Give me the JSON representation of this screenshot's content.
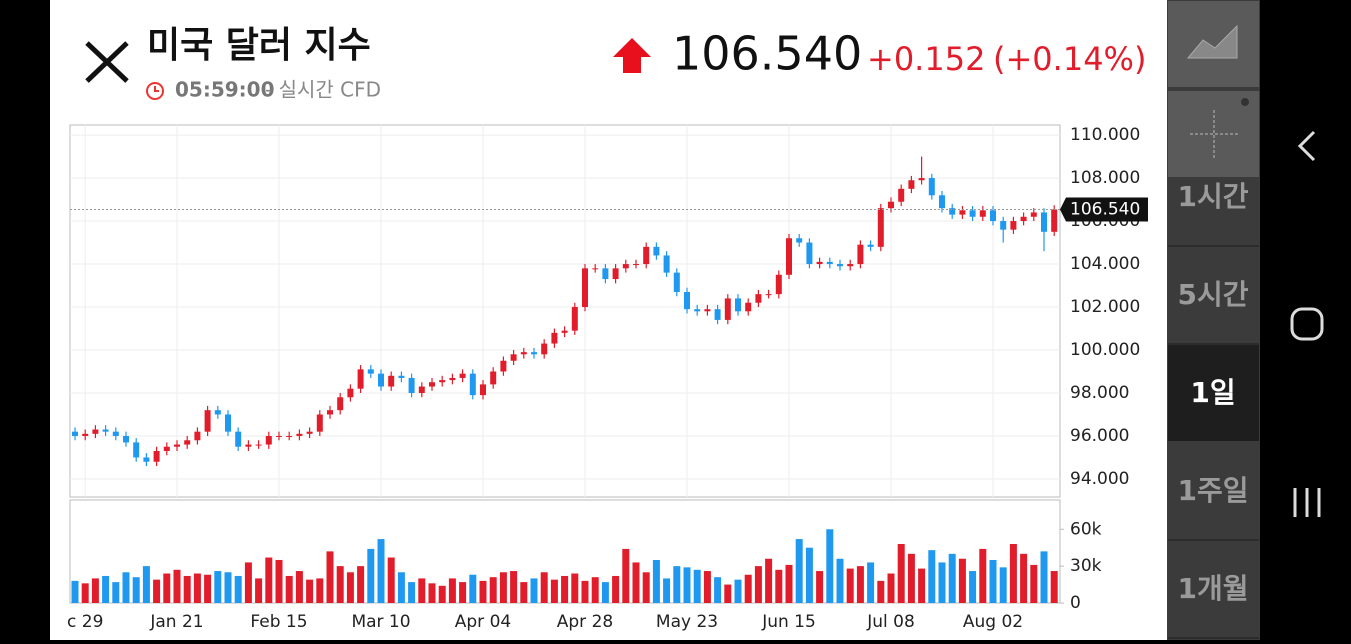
{
  "header": {
    "title": "미국 달러 지수",
    "time": "05:59:00",
    "source": "- 실시간 CFD",
    "price": "106.540",
    "change": "+0.152",
    "change_pct": "(+0.14%)"
  },
  "sidebar": {
    "intervals": [
      "1시간",
      "5시간",
      "1일",
      "1주일",
      "1개월"
    ],
    "selected": "1일"
  },
  "chart_data": {
    "type": "candlestick",
    "up_color": "#e21d2b",
    "down_color": "#1f98ef",
    "grid": true,
    "categories": [
      null,
      "c 29",
      null,
      null,
      null,
      null,
      null,
      null,
      null,
      null,
      "Jan 21",
      null,
      null,
      null,
      null,
      null,
      null,
      null,
      null,
      null,
      "Feb 15",
      null,
      null,
      null,
      null,
      null,
      null,
      null,
      null,
      null,
      "Mar 10",
      null,
      null,
      null,
      null,
      null,
      null,
      null,
      null,
      null,
      "Apr 04",
      null,
      null,
      null,
      null,
      null,
      null,
      null,
      null,
      null,
      "Apr 28",
      null,
      null,
      null,
      null,
      null,
      null,
      null,
      null,
      null,
      "May 23",
      null,
      null,
      null,
      null,
      null,
      null,
      null,
      null,
      null,
      "Jun 15",
      null,
      null,
      null,
      null,
      null,
      null,
      null,
      null,
      null,
      "Jul 08",
      null,
      null,
      null,
      null,
      null,
      null,
      null,
      null,
      null,
      "Aug 02",
      null,
      null,
      null,
      null,
      null,
      null
    ],
    "open": [
      96.2,
      96.0,
      96.1,
      96.3,
      96.2,
      96.0,
      95.7,
      95.0,
      94.8,
      95.3,
      95.5,
      95.6,
      95.8,
      96.2,
      97.2,
      97.0,
      96.2,
      95.5,
      95.6,
      95.6,
      96.0,
      96.0,
      96.0,
      96.1,
      96.2,
      97.0,
      97.2,
      97.8,
      98.2,
      99.1,
      98.9,
      98.3,
      98.8,
      98.7,
      98.0,
      98.3,
      98.5,
      98.6,
      98.7,
      98.9,
      97.9,
      98.4,
      99.0,
      99.5,
      99.8,
      99.9,
      99.8,
      100.3,
      100.8,
      100.9,
      102.0,
      103.8,
      103.8,
      103.3,
      103.8,
      104.0,
      104.0,
      104.8,
      104.4,
      103.6,
      102.7,
      101.9,
      101.8,
      101.9,
      101.4,
      102.4,
      101.8,
      102.2,
      102.6,
      102.6,
      103.5,
      105.2,
      105.0,
      104.0,
      104.1,
      104.0,
      103.9,
      104.0,
      104.9,
      104.8,
      106.6,
      106.9,
      107.5,
      107.9,
      108.0,
      107.2,
      106.6,
      106.3,
      106.5,
      106.2,
      106.5,
      106.0,
      105.6,
      106.0,
      106.2,
      106.4,
      105.5
    ],
    "high": [
      96.4,
      96.3,
      96.5,
      96.5,
      96.4,
      96.2,
      95.9,
      95.2,
      95.5,
      95.7,
      95.8,
      96.0,
      96.4,
      97.4,
      97.4,
      97.2,
      96.4,
      95.8,
      95.8,
      96.2,
      96.2,
      96.2,
      96.3,
      96.4,
      97.2,
      97.4,
      98.0,
      98.4,
      99.3,
      99.3,
      99.1,
      99.0,
      99.0,
      98.9,
      98.5,
      98.7,
      98.8,
      98.9,
      99.1,
      99.1,
      98.6,
      99.2,
      99.7,
      100.0,
      100.1,
      100.1,
      100.5,
      101.0,
      101.1,
      102.2,
      104.0,
      104.0,
      104.0,
      104.0,
      104.2,
      104.2,
      105.0,
      105.0,
      104.6,
      103.8,
      102.9,
      102.1,
      102.1,
      102.1,
      102.6,
      102.6,
      102.4,
      102.8,
      102.8,
      103.7,
      105.4,
      105.4,
      105.2,
      104.3,
      104.3,
      104.2,
      104.2,
      105.1,
      105.1,
      106.8,
      107.1,
      107.7,
      108.1,
      109.0,
      108.2,
      107.4,
      106.8,
      106.7,
      106.7,
      106.7,
      106.7,
      106.2,
      106.2,
      106.4,
      106.6,
      106.6,
      106.74
    ],
    "low": [
      95.8,
      95.8,
      95.9,
      96.0,
      95.8,
      95.5,
      94.8,
      94.6,
      94.6,
      95.1,
      95.3,
      95.4,
      95.6,
      96.0,
      96.8,
      96.0,
      95.3,
      95.3,
      95.4,
      95.4,
      95.8,
      95.8,
      95.8,
      95.9,
      96.0,
      96.8,
      97.0,
      97.6,
      98.0,
      98.7,
      98.1,
      98.1,
      98.5,
      97.8,
      97.8,
      98.1,
      98.3,
      98.4,
      98.5,
      97.7,
      97.7,
      98.2,
      98.8,
      99.3,
      99.6,
      99.6,
      99.6,
      100.1,
      100.6,
      100.7,
      101.8,
      103.6,
      103.1,
      103.1,
      103.6,
      103.8,
      103.8,
      104.2,
      103.4,
      102.5,
      101.7,
      101.6,
      101.6,
      101.2,
      101.2,
      101.6,
      101.6,
      102.0,
      102.4,
      102.4,
      103.3,
      104.8,
      103.8,
      103.8,
      103.8,
      103.7,
      103.7,
      103.8,
      104.6,
      104.6,
      106.4,
      106.7,
      107.3,
      107.7,
      107.0,
      106.4,
      106.1,
      106.1,
      106.0,
      106.0,
      105.8,
      105.0,
      105.4,
      105.8,
      106.0,
      104.6,
      105.3
    ],
    "close": [
      96.0,
      96.1,
      96.3,
      96.2,
      96.0,
      95.7,
      95.0,
      94.8,
      95.3,
      95.5,
      95.6,
      95.8,
      96.2,
      97.2,
      97.0,
      96.2,
      95.5,
      95.6,
      95.6,
      96.0,
      96.0,
      96.0,
      96.1,
      96.2,
      97.0,
      97.2,
      97.8,
      98.2,
      99.1,
      98.9,
      98.3,
      98.8,
      98.7,
      98.0,
      98.3,
      98.5,
      98.6,
      98.7,
      98.9,
      97.9,
      98.4,
      99.0,
      99.5,
      99.8,
      99.9,
      99.8,
      100.3,
      100.8,
      100.9,
      102.0,
      103.8,
      103.8,
      103.3,
      103.8,
      104.0,
      104.0,
      104.8,
      104.4,
      103.6,
      102.7,
      101.9,
      101.8,
      101.9,
      101.4,
      102.4,
      101.8,
      102.2,
      102.6,
      102.6,
      103.5,
      105.2,
      105.0,
      104.0,
      104.1,
      104.0,
      103.9,
      104.0,
      104.9,
      104.8,
      106.6,
      106.9,
      107.5,
      107.9,
      108.0,
      107.2,
      106.6,
      106.3,
      106.5,
      106.2,
      106.5,
      106.0,
      105.6,
      106.0,
      106.2,
      106.4,
      105.5,
      106.54
    ],
    "ylim": [
      93.16,
      110.47
    ],
    "yticks": [
      {
        "value": 94,
        "label": "94.000"
      },
      {
        "value": 96,
        "label": "96.000"
      },
      {
        "value": 98,
        "label": "98.000"
      },
      {
        "value": 100,
        "label": "100.000"
      },
      {
        "value": 102,
        "label": "102.000"
      },
      {
        "value": 104,
        "label": "104.000"
      },
      {
        "value": 106,
        "label": "106.000"
      },
      {
        "value": 108,
        "label": "108.000"
      },
      {
        "value": 110,
        "label": "110.000"
      }
    ],
    "volume": {
      "values": [
        18000,
        16000,
        20000,
        22000,
        17000,
        25000,
        21000,
        30000,
        19000,
        24000,
        27000,
        22000,
        24000,
        23000,
        26000,
        25000,
        22000,
        33000,
        20000,
        37000,
        35000,
        22000,
        26000,
        19000,
        20000,
        42000,
        30000,
        25000,
        30000,
        44000,
        52000,
        37000,
        25000,
        17000,
        20000,
        16000,
        14000,
        20000,
        17000,
        23000,
        18000,
        21000,
        25000,
        26000,
        17000,
        20000,
        25000,
        19000,
        22000,
        24000,
        18000,
        21000,
        17000,
        22000,
        44000,
        33000,
        25000,
        35000,
        20000,
        30000,
        29000,
        27000,
        26000,
        21000,
        15000,
        19000,
        23000,
        30000,
        36000,
        27000,
        31000,
        52000,
        45000,
        26000,
        60000,
        36000,
        28000,
        30000,
        33000,
        18000,
        24000,
        48000,
        40000,
        28000,
        43000,
        33000,
        40000,
        36000,
        26000,
        44000,
        35000,
        29000,
        48000,
        40000,
        31000,
        42000,
        26000
      ],
      "ylim": [
        0,
        83800
      ],
      "yticks": [
        {
          "value": 0,
          "label": "0"
        },
        {
          "value": 30000,
          "label": "30k"
        },
        {
          "value": 60000,
          "label": "60k"
        }
      ]
    }
  }
}
